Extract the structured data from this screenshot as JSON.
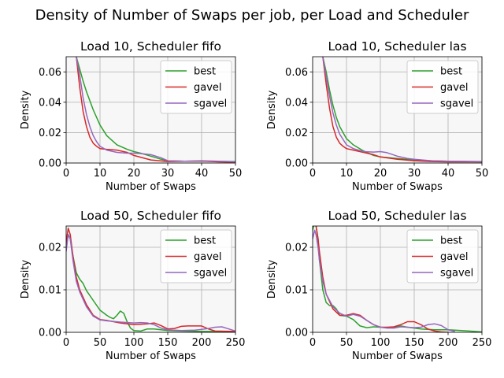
{
  "figure": {
    "suptitle": "Density of Number of Swaps per job, per Load and Scheduler"
  },
  "colors": {
    "best": "#2ca02c",
    "gavel": "#d62728",
    "sgavel": "#9467bd",
    "plot_bg": "#f7f7f7",
    "grid": "#b0b0b0"
  },
  "chart_data": [
    {
      "type": "line",
      "title": "Load 10, Scheduler fifo",
      "xlabel": "Number of Swaps",
      "ylabel": "Density",
      "xlim": [
        0,
        50
      ],
      "ylim": [
        0,
        0.07
      ],
      "xticks": [
        0,
        10,
        20,
        30,
        40,
        50
      ],
      "yticks": [
        0.0,
        0.02,
        0.04,
        0.06
      ],
      "ytick_labels": [
        "0.00",
        "0.02",
        "0.04",
        "0.06"
      ],
      "grid": true,
      "legend": "upper-right",
      "series": [
        {
          "name": "best",
          "x": [
            3,
            4,
            5,
            6,
            8,
            10,
            12,
            15,
            18,
            20,
            22,
            25,
            28,
            30,
            35,
            40,
            45,
            50
          ],
          "y": [
            0.07,
            0.062,
            0.054,
            0.047,
            0.035,
            0.025,
            0.018,
            0.012,
            0.009,
            0.0075,
            0.0065,
            0.0045,
            0.0025,
            0.0015,
            0.0012,
            0.0012,
            0.0011,
            0.001
          ]
        },
        {
          "name": "gavel",
          "x": [
            3,
            4,
            5,
            6,
            7,
            8,
            9,
            10,
            12,
            15,
            18,
            20,
            25,
            30,
            35,
            40,
            45,
            50
          ],
          "y": [
            0.07,
            0.05,
            0.034,
            0.024,
            0.017,
            0.013,
            0.011,
            0.0095,
            0.009,
            0.0085,
            0.007,
            0.005,
            0.002,
            0.001,
            0.0012,
            0.0013,
            0.0008,
            0.0005
          ]
        },
        {
          "name": "sgavel",
          "x": [
            3,
            4,
            5,
            6,
            7,
            8,
            9,
            10,
            12,
            15,
            18,
            20,
            22,
            25,
            28,
            30,
            35,
            40,
            45,
            50
          ],
          "y": [
            0.07,
            0.058,
            0.043,
            0.032,
            0.024,
            0.018,
            0.014,
            0.011,
            0.0085,
            0.007,
            0.0065,
            0.0065,
            0.0062,
            0.0055,
            0.0035,
            0.0015,
            0.0012,
            0.0015,
            0.0012,
            0.0008
          ]
        }
      ]
    },
    {
      "type": "line",
      "title": "Load 10, Scheduler las",
      "xlabel": "Number of Swaps",
      "ylabel": "Density",
      "xlim": [
        0,
        50
      ],
      "ylim": [
        0,
        0.07
      ],
      "xticks": [
        0,
        10,
        20,
        30,
        40,
        50
      ],
      "yticks": [
        0.0,
        0.02,
        0.04,
        0.06
      ],
      "ytick_labels": [
        "0.00",
        "0.02",
        "0.04",
        "0.06"
      ],
      "grid": true,
      "legend": "upper-right",
      "series": [
        {
          "name": "best",
          "x": [
            3,
            4,
            5,
            6,
            7,
            8,
            10,
            12,
            15,
            18,
            20,
            25,
            30,
            35,
            40,
            45,
            50
          ],
          "y": [
            0.07,
            0.06,
            0.048,
            0.038,
            0.03,
            0.024,
            0.016,
            0.012,
            0.008,
            0.005,
            0.004,
            0.003,
            0.002,
            0.0015,
            0.0012,
            0.001,
            0.0008
          ]
        },
        {
          "name": "gavel",
          "x": [
            3,
            4,
            5,
            6,
            7,
            8,
            9,
            10,
            12,
            15,
            18,
            20,
            25,
            30,
            35,
            40,
            45,
            50
          ],
          "y": [
            0.07,
            0.052,
            0.036,
            0.024,
            0.017,
            0.013,
            0.011,
            0.0095,
            0.0085,
            0.007,
            0.0055,
            0.004,
            0.0025,
            0.0015,
            0.001,
            0.0008,
            0.0008,
            0.0008
          ]
        },
        {
          "name": "sgavel",
          "x": [
            3,
            4,
            5,
            6,
            7,
            8,
            10,
            12,
            15,
            18,
            20,
            22,
            25,
            28,
            30,
            35,
            40,
            45,
            50
          ],
          "y": [
            0.07,
            0.057,
            0.044,
            0.033,
            0.025,
            0.019,
            0.012,
            0.0095,
            0.0075,
            0.0072,
            0.0075,
            0.0068,
            0.0045,
            0.003,
            0.0025,
            0.0015,
            0.0012,
            0.0011,
            0.001
          ]
        }
      ]
    },
    {
      "type": "line",
      "title": "Load 50, Scheduler fifo",
      "xlabel": "Number of Swaps",
      "ylabel": "Density",
      "xlim": [
        0,
        250
      ],
      "ylim": [
        0,
        0.025
      ],
      "xticks": [
        0,
        50,
        100,
        150,
        200,
        250
      ],
      "yticks": [
        0.0,
        0.01,
        0.02
      ],
      "ytick_labels": [
        "0.00",
        "0.01",
        "0.02"
      ],
      "grid": true,
      "legend": "upper-right",
      "series": [
        {
          "name": "best",
          "x": [
            0,
            3,
            6,
            10,
            15,
            20,
            25,
            30,
            40,
            50,
            60,
            65,
            70,
            75,
            80,
            85,
            90,
            95,
            100,
            110,
            120,
            130,
            150,
            170,
            200,
            220,
            250
          ],
          "y": [
            0.02,
            0.023,
            0.022,
            0.018,
            0.014,
            0.0125,
            0.0115,
            0.0098,
            0.0075,
            0.0052,
            0.004,
            0.0035,
            0.0032,
            0.004,
            0.005,
            0.0045,
            0.0025,
            0.001,
            0.0004,
            0.0003,
            0.0008,
            0.0008,
            0.0004,
            0.0003,
            0.0002,
            0.0002,
            0.0001
          ]
        },
        {
          "name": "gavel",
          "x": [
            0,
            3,
            6,
            10,
            15,
            20,
            30,
            40,
            50,
            60,
            70,
            80,
            100,
            110,
            120,
            130,
            140,
            150,
            160,
            170,
            180,
            200,
            210,
            220,
            250
          ],
          "y": [
            0.021,
            0.0245,
            0.023,
            0.018,
            0.013,
            0.01,
            0.0065,
            0.004,
            0.003,
            0.0028,
            0.0025,
            0.0022,
            0.0018,
            0.0019,
            0.002,
            0.0022,
            0.0016,
            0.0008,
            0.0009,
            0.0014,
            0.0015,
            0.0015,
            0.0008,
            0.0003,
            0.0002
          ]
        },
        {
          "name": "sgavel",
          "x": [
            0,
            3,
            6,
            10,
            15,
            20,
            30,
            40,
            50,
            60,
            80,
            100,
            110,
            120,
            130,
            140,
            150,
            170,
            190,
            200,
            210,
            220,
            230,
            240,
            250
          ],
          "y": [
            0.019,
            0.023,
            0.022,
            0.017,
            0.012,
            0.0095,
            0.006,
            0.0038,
            0.0029,
            0.0027,
            0.0024,
            0.0022,
            0.0023,
            0.0022,
            0.0018,
            0.001,
            0.0006,
            0.0004,
            0.0005,
            0.0007,
            0.0009,
            0.0012,
            0.0013,
            0.0008,
            0.0003
          ]
        }
      ]
    },
    {
      "type": "line",
      "title": "Load 50, Scheduler las",
      "xlabel": "Number of Swaps",
      "ylabel": "Density",
      "xlim": [
        0,
        250
      ],
      "ylim": [
        0,
        0.025
      ],
      "xticks": [
        0,
        50,
        100,
        150,
        200,
        250
      ],
      "yticks": [
        0.0,
        0.01,
        0.02
      ],
      "ytick_labels": [
        "0.00",
        "0.01",
        "0.02"
      ],
      "grid": true,
      "legend": "upper-right",
      "series": [
        {
          "name": "best",
          "x": [
            0,
            3,
            5,
            8,
            10,
            15,
            20,
            25,
            30,
            35,
            40,
            50,
            60,
            70,
            80,
            90,
            100,
            110,
            120,
            130,
            140,
            150,
            160,
            180,
            200,
            220,
            240,
            250
          ],
          "y": [
            0.024,
            0.026,
            0.025,
            0.022,
            0.017,
            0.01,
            0.007,
            0.0063,
            0.0063,
            0.0055,
            0.004,
            0.0038,
            0.003,
            0.0015,
            0.0011,
            0.0013,
            0.0012,
            0.0011,
            0.0012,
            0.0015,
            0.0012,
            0.001,
            0.0008,
            0.0006,
            0.0006,
            0.0004,
            0.0002,
            0.0001
          ]
        },
        {
          "name": "gavel",
          "x": [
            0,
            3,
            5,
            8,
            10,
            15,
            20,
            30,
            40,
            50,
            60,
            70,
            80,
            90,
            100,
            110,
            120,
            130,
            140,
            150,
            160,
            170,
            180,
            190,
            200
          ],
          "y": [
            0.025,
            0.026,
            0.025,
            0.022,
            0.019,
            0.013,
            0.009,
            0.0055,
            0.004,
            0.004,
            0.0044,
            0.004,
            0.0028,
            0.0018,
            0.0012,
            0.0012,
            0.0013,
            0.0018,
            0.0025,
            0.0025,
            0.0018,
            0.0008,
            0.0003,
            0.0001,
            0.0
          ]
        },
        {
          "name": "sgavel",
          "x": [
            0,
            3,
            5,
            8,
            10,
            15,
            20,
            30,
            40,
            50,
            60,
            70,
            80,
            90,
            100,
            110,
            120,
            130,
            140,
            150,
            160,
            170,
            180,
            190,
            200,
            210
          ],
          "y": [
            0.022,
            0.024,
            0.023,
            0.02,
            0.017,
            0.012,
            0.009,
            0.006,
            0.0045,
            0.0038,
            0.0042,
            0.0038,
            0.0028,
            0.0018,
            0.0012,
            0.001,
            0.001,
            0.0013,
            0.0012,
            0.0011,
            0.0012,
            0.0018,
            0.002,
            0.0016,
            0.0006,
            0.0002
          ]
        }
      ]
    }
  ]
}
